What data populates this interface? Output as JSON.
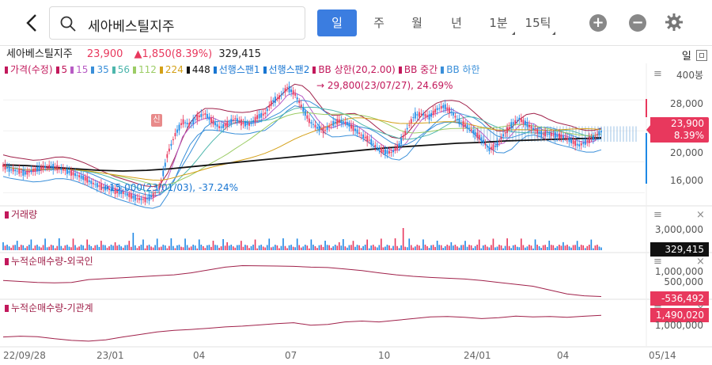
{
  "header": {
    "search_text": "세아베스틸지주",
    "periods": [
      "일",
      "주",
      "월",
      "년",
      "1분",
      "15틱"
    ]
  },
  "info": {
    "name": "세아베스틸지주",
    "price": "23,900",
    "change": "▲1,850(8.39%)",
    "volume": "329,415",
    "day_label": "일"
  },
  "legend": {
    "items": [
      {
        "label": "가격(수정)",
        "color": "#c2185b"
      },
      {
        "label": "5",
        "color": "#c2185b"
      },
      {
        "label": "15",
        "color": "#b85cc5"
      },
      {
        "label": "35",
        "color": "#3a8fd9"
      },
      {
        "label": "56",
        "color": "#4db6ac"
      },
      {
        "label": "112",
        "color": "#9ccc65"
      },
      {
        "label": "224",
        "color": "#d4a017"
      },
      {
        "label": "448",
        "color": "#111111"
      },
      {
        "label": "선행스팬1",
        "color": "#1976d2"
      },
      {
        "label": "선행스팬2",
        "color": "#1976d2"
      },
      {
        "label": "BB 상한(20,2.00)",
        "color": "#c2185b"
      },
      {
        "label": "BB 중간",
        "color": "#c2185b"
      },
      {
        "label": "BB 하한",
        "color": "#3a8fd9"
      }
    ],
    "count_label": "400봉"
  },
  "panels": {
    "volume": "거래량",
    "foreign": "누적순매수량-외국인",
    "institution": "누적순매수량-기관계"
  },
  "annotations": {
    "high": "29,800(23/07/27), 24.69%",
    "low": "15,000(23/01/03), -37.24%",
    "s_mark": "신"
  },
  "tags": {
    "price": "23,900",
    "pct": "8.39%",
    "volume": "329,415",
    "foreign": "-536,492",
    "institution": "1,490,020"
  },
  "colors": {
    "up": "#e8385d",
    "down": "#1e88e5",
    "accent": "#3b7de0"
  },
  "chart_data": [
    {
      "type": "candlestick",
      "title": "세아베스틸지주",
      "x_ticks": [
        "22/09/28",
        "23/01",
        "04",
        "07",
        "10",
        "24/01",
        "04",
        "05/14"
      ],
      "y_ticks": [
        16000,
        20000,
        24000,
        28000
      ],
      "ylim": [
        14500,
        31000
      ],
      "close": [
        19500,
        19000,
        18800,
        18500,
        18900,
        19200,
        19400,
        19300,
        19000,
        18600,
        18200,
        17800,
        17200,
        16800,
        16500,
        16200,
        16000,
        15600,
        15200,
        15100,
        15600,
        16800,
        21000,
        23500,
        25200,
        24800,
        25800,
        26200,
        25200,
        24400,
        24900,
        25600,
        25000,
        24800,
        25800,
        26200,
        27800,
        28400,
        29600,
        28800,
        27000,
        25200,
        24400,
        24000,
        24900,
        25300,
        25000,
        24200,
        23400,
        22800,
        21800,
        21300,
        21200,
        22200,
        24200,
        26000,
        26200,
        25800,
        26800,
        27200,
        26400,
        25200,
        24600,
        23800,
        22900,
        21600,
        22100,
        23600,
        24800,
        25600,
        24900,
        24200,
        23600,
        23600,
        23400,
        23200,
        22700,
        22100,
        22600,
        23200,
        23900
      ],
      "ma_448": [
        19600,
        19500,
        19300,
        19100,
        18900,
        18800,
        18900,
        19100,
        19400,
        19700,
        20000,
        20300,
        20600,
        20900,
        21200,
        21500,
        21800,
        22000,
        22200,
        22400,
        22500,
        22700,
        22800,
        22900,
        23000,
        23100
      ]
    },
    {
      "type": "bar",
      "title": "거래량",
      "y_ticks": [
        3000000
      ],
      "last_value": 329415
    },
    {
      "type": "line",
      "title": "누적순매수량-외국인",
      "y_ticks": [
        1000000,
        500000
      ],
      "values": [
        300000,
        250000,
        200000,
        180000,
        200000,
        350000,
        400000,
        450000,
        500000,
        550000,
        600000,
        700000,
        850000,
        1000000,
        1080000,
        1070000,
        1060000,
        1040000,
        1000000,
        980000,
        900000,
        820000,
        700000,
        600000,
        520000,
        460000,
        420000,
        380000,
        300000,
        200000,
        100000,
        0,
        -200000,
        -400000,
        -500000,
        -536492
      ],
      "last_value": -536492
    },
    {
      "type": "line",
      "title": "누적순매수량-기관계",
      "y_ticks": [
        1000000
      ],
      "values": [
        200000,
        250000,
        220000,
        100000,
        0,
        -50000,
        30000,
        200000,
        350000,
        500000,
        600000,
        650000,
        720000,
        800000,
        850000,
        920000,
        1000000,
        1050000,
        900000,
        950000,
        1100000,
        1150000,
        1100000,
        1200000,
        1300000,
        1400000,
        1420000,
        1380000,
        1300000,
        1350000,
        1450000,
        1400000,
        1420000,
        1380000,
        1440000,
        1490020
      ],
      "last_value": 1490020
    }
  ]
}
